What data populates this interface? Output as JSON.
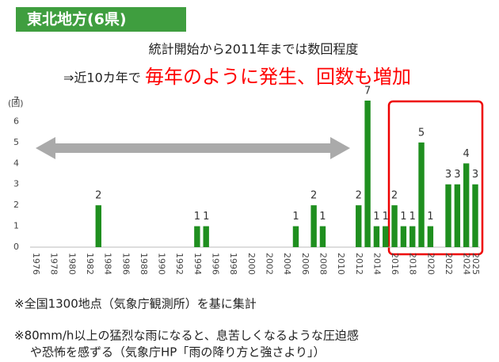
{
  "chart_data": {
    "type": "bar",
    "title": "東北地方(6県)",
    "subtitle": "統計開始から2011年までは数回程度",
    "annotation": [
      "⇒近10カ年で",
      "毎年のように発生、回数も増加"
    ],
    "y_label": "(回)",
    "notes": [
      "※全国1300地点（気象庁観測所）を基に集計",
      "※80mm/h以上の猛烈な雨になると、息苦しくなるような圧迫感",
      "や恐怖を感ずる（気象庁HP「雨の降り方と強さより」）"
    ],
    "categories": [
      "1976",
      null,
      "1978",
      null,
      "1980",
      null,
      "1982",
      null,
      "1984",
      null,
      "1986",
      null,
      "1988",
      null,
      "1990",
      null,
      "1992",
      null,
      "1994",
      null,
      "1996",
      null,
      "1998",
      null,
      "2000",
      null,
      "2002",
      null,
      "2004",
      null,
      "2006",
      null,
      "2008",
      null,
      "2010",
      null,
      "2012",
      null,
      "2014",
      null,
      "2016",
      null,
      "2018",
      null,
      "2020",
      null,
      "2022",
      null,
      "2024",
      "2025"
    ],
    "values": [
      0,
      0,
      0,
      0,
      0,
      0,
      0,
      2,
      0,
      0,
      0,
      0,
      0,
      0,
      0,
      0,
      0,
      0,
      1,
      1,
      0,
      0,
      0,
      0,
      0,
      0,
      0,
      0,
      0,
      1,
      0,
      2,
      1,
      0,
      0,
      0,
      2,
      7,
      1,
      1,
      2,
      1,
      1,
      5,
      1,
      0,
      3,
      3,
      4,
      3
    ],
    "color": "#1f8f1f",
    "ylim": [
      0,
      7
    ],
    "yticks": [
      0,
      1,
      2,
      3,
      4,
      5,
      6,
      7
    ],
    "grid": false
  }
}
